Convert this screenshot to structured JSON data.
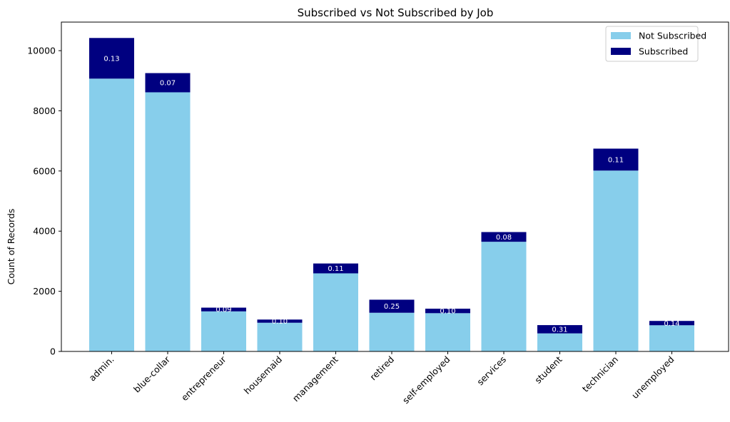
{
  "chart_data": {
    "type": "bar",
    "stacked": true,
    "title": "Subscribed vs Not Subscribed by Job",
    "xlabel": "",
    "ylabel": "Count of Records",
    "ylim": [
      0,
      10950
    ],
    "yticks": [
      0,
      2000,
      4000,
      6000,
      8000,
      10000
    ],
    "grid": false,
    "legend_position": "top-right",
    "categories": [
      "admin.",
      "blue-collar",
      "entrepreneur",
      "housemaid",
      "management",
      "retired",
      "self-employed",
      "services",
      "student",
      "technician",
      "unemployed"
    ],
    "series": [
      {
        "name": "Not Subscribed",
        "color": "#87ceeb",
        "values": [
          9070,
          8616,
          1332,
          954,
          2596,
          1286,
          1272,
          3646,
          600,
          6013,
          870
        ]
      },
      {
        "name": "Subscribed",
        "color": "#000080",
        "values": [
          1352,
          638,
          124,
          106,
          328,
          434,
          149,
          323,
          275,
          730,
          144
        ]
      }
    ],
    "bar_labels": [
      "0.13",
      "0.07",
      "0.09",
      "0.10",
      "0.11",
      "0.25",
      "0.10",
      "0.08",
      "0.31",
      "0.11",
      "0.14"
    ]
  }
}
